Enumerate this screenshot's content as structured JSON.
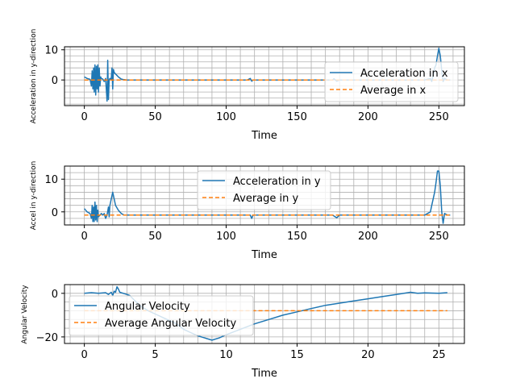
{
  "colors": {
    "series": "#1f77b4",
    "average": "#ff7f0e",
    "grid": "#b0b0b0"
  },
  "chart_data": [
    {
      "type": "line",
      "xlabel": "Time",
      "ylabel": "Acceleration in y-direction",
      "xlim": [
        -14,
        268
      ],
      "ylim": [
        -8.5,
        11
      ],
      "xticks": [
        0,
        50,
        100,
        150,
        200,
        250
      ],
      "yticks": [
        0,
        10
      ],
      "legend_position": "right",
      "series": [
        {
          "name": "Acceleration in x",
          "style": "solid",
          "x": [
            0,
            2,
            4,
            5,
            5.5,
            6,
            6.5,
            7,
            7.5,
            8,
            8.5,
            9,
            9.5,
            10,
            10.5,
            11,
            11.5,
            12,
            13,
            14,
            15,
            16,
            16.5,
            17,
            17.5,
            18,
            19,
            19.5,
            20,
            20.5,
            21,
            22,
            24,
            26,
            28,
            30,
            50,
            80,
            100,
            115,
            117,
            118,
            119,
            121,
            150,
            175,
            176,
            178,
            180,
            200,
            220,
            240,
            244,
            245,
            246,
            247,
            248,
            249,
            250,
            251,
            252,
            253,
            254,
            256,
            258
          ],
          "y": [
            1,
            0.5,
            0.2,
            -2,
            3,
            -3,
            4,
            -4,
            5,
            -5,
            4.5,
            -3,
            5,
            -4,
            4,
            -2,
            1,
            0.5,
            0.3,
            -0.5,
            0.5,
            -7,
            6.5,
            -6.5,
            0,
            0.5,
            0.3,
            4,
            -3,
            3.5,
            2.5,
            2,
            1,
            0.3,
            0.1,
            0,
            0,
            0,
            0,
            0,
            0.5,
            -0.4,
            0,
            0,
            0,
            0,
            0.4,
            -0.4,
            0,
            0,
            0,
            0,
            0.5,
            -0.5,
            1.5,
            4,
            5,
            8,
            10.5,
            8,
            3,
            -0.5,
            0.5,
            0,
            0
          ]
        },
        {
          "name": "Average in x",
          "style": "dashed",
          "x": [
            0,
            258
          ],
          "y": [
            0,
            0
          ]
        }
      ]
    },
    {
      "type": "line",
      "xlabel": "Time",
      "ylabel": "Accel in y-direction",
      "xlim": [
        -14,
        268
      ],
      "ylim": [
        -4,
        14
      ],
      "xticks": [
        0,
        50,
        100,
        150,
        200,
        250
      ],
      "yticks": [
        0,
        10
      ],
      "legend_position": "top-center",
      "series": [
        {
          "name": "Acceleration in y",
          "style": "solid",
          "x": [
            0,
            2,
            4,
            5,
            5.5,
            6,
            6.5,
            7,
            7.5,
            8,
            8.5,
            9,
            9.5,
            10,
            11,
            12,
            13,
            14,
            15,
            16,
            17,
            17.5,
            18,
            18.5,
            19,
            20,
            21,
            22,
            24,
            26,
            28,
            30,
            50,
            100,
            117,
            118,
            119,
            121,
            150,
            175,
            178,
            180,
            200,
            240,
            244,
            245,
            246,
            247,
            248,
            249,
            250,
            251,
            252,
            253,
            254,
            256,
            258
          ],
          "y": [
            1,
            0,
            -0.5,
            -2,
            2,
            -3,
            1.5,
            -3,
            3,
            -2.5,
            2,
            -3,
            0.5,
            -1.5,
            -1,
            -0.5,
            -1,
            -0.5,
            -2,
            -1,
            1.5,
            -1.5,
            2,
            3,
            4,
            6,
            4,
            2,
            0.5,
            -0.5,
            -1,
            -1,
            -1,
            -1,
            -1,
            -2,
            -1,
            -1,
            -1,
            -1,
            -1.8,
            -1,
            -1,
            -1,
            0,
            2,
            4,
            6,
            9,
            12.5,
            12.5,
            8,
            0,
            -3.5,
            -0.5,
            -1,
            -1
          ]
        },
        {
          "name": "Average in y",
          "style": "dashed",
          "x": [
            0,
            258
          ],
          "y": [
            -1,
            -1
          ]
        }
      ]
    },
    {
      "type": "line",
      "xlabel": "Time",
      "ylabel": "Angular Velocity",
      "xlim": [
        -1.4,
        26.8
      ],
      "ylim": [
        -23,
        4
      ],
      "xticks": [
        0,
        5,
        10,
        15,
        20,
        25
      ],
      "yticks": [
        0,
        -20
      ],
      "legend_position": "left",
      "series": [
        {
          "name": "Angular Velocity",
          "style": "solid",
          "x": [
            0,
            0.5,
            1,
            1.5,
            1.7,
            1.9,
            2.0,
            2.1,
            2.2,
            2.3,
            2.4,
            2.5,
            3,
            3.2,
            3.5,
            4,
            4.5,
            5,
            5.5,
            6,
            6.5,
            7,
            7.5,
            8,
            8.5,
            9,
            9.5,
            10,
            11,
            12,
            13,
            14,
            15,
            16,
            17,
            18,
            19,
            20,
            21,
            22,
            23,
            23.5,
            24,
            25,
            25.6
          ],
          "y": [
            0,
            0.3,
            0,
            0.3,
            -0.5,
            0.5,
            -1,
            1,
            0.5,
            3,
            2,
            0.5,
            -0.5,
            -1,
            -3,
            -6,
            -8,
            -9.5,
            -11,
            -12.5,
            -14,
            -16.5,
            -18,
            -19.5,
            -20.5,
            -21.5,
            -20.5,
            -19,
            -16.5,
            -14,
            -12,
            -10,
            -8.5,
            -7,
            -5.5,
            -4.5,
            -3.5,
            -2.5,
            -1.5,
            -0.5,
            0.5,
            0,
            0.2,
            0,
            0.3
          ]
        },
        {
          "name": "Average Angular Velocity",
          "style": "dashed",
          "x": [
            0,
            25.6
          ],
          "y": [
            -8,
            -8
          ]
        }
      ]
    }
  ]
}
